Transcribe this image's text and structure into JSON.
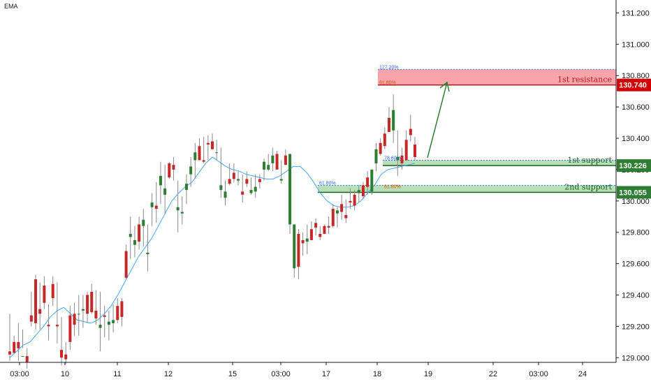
{
  "chart_data": {
    "type": "candlestick",
    "indicator": "EMA",
    "y_range": [
      128.97,
      131.26
    ],
    "y_ticks": [
      "131.200",
      "131.000",
      "130.800",
      "130.600",
      "130.400",
      "130.200",
      "130.000",
      "129.800",
      "129.600",
      "129.400",
      "129.200",
      "129.000"
    ],
    "x_ticks": [
      "03:00",
      "10",
      "11",
      "12",
      "15",
      "03:00",
      "17",
      "18",
      "19",
      "22",
      "03:00",
      "24"
    ],
    "zones": [
      {
        "label": "1st resistance",
        "top": 130.84,
        "bottom": 130.74,
        "color": "#f23645",
        "badge": "130.740",
        "fib_top": "127.20%",
        "fib_bottom": "61.80%"
      },
      {
        "label": "1st support",
        "top": 130.26,
        "bottom": 130.226,
        "color": "#2e7d32",
        "badge": "130.226",
        "fib_top": "78.60%"
      },
      {
        "label": "2nd support",
        "top": 130.1,
        "bottom": 130.055,
        "color": "#2e7d32",
        "badge": "130.055",
        "fib_top": "61.80%",
        "fib_top2": "61.80%"
      }
    ],
    "candles": [
      [
        129.04,
        129.28,
        129.02,
        128.98
      ],
      [
        129.1,
        129.14,
        129.03,
        129.05
      ],
      [
        129.1,
        129.22,
        129.06,
        128.98
      ],
      [
        129.01,
        129.18,
        129.01,
        129.06
      ],
      [
        129.01,
        129.06,
        128.97,
        128.93
      ],
      [
        129.27,
        129.42,
        129.23,
        129.2
      ],
      [
        129.5,
        129.53,
        129.22,
        129.18
      ],
      [
        129.31,
        129.48,
        129.28,
        129.18
      ],
      [
        129.46,
        129.52,
        129.35,
        129.31
      ],
      [
        129.21,
        129.34,
        129.2,
        129.11
      ],
      [
        129.47,
        129.52,
        129.38,
        129.33
      ],
      [
        129.21,
        129.48,
        129.2,
        129.09
      ],
      [
        129.05,
        129.26,
        129.0,
        128.95
      ],
      [
        129.02,
        129.1,
        128.99,
        128.96
      ],
      [
        129.27,
        129.33,
        129.1,
        129.05
      ],
      [
        129.28,
        129.35,
        129.21,
        129.14
      ],
      [
        129.28,
        129.4,
        129.28,
        129.14
      ],
      [
        129.3,
        129.4,
        129.31,
        129.19
      ],
      [
        129.4,
        129.42,
        129.28,
        129.22
      ],
      [
        129.42,
        129.47,
        129.29,
        129.28
      ],
      [
        129.3,
        129.43,
        129.25,
        129.21
      ],
      [
        129.19,
        129.42,
        129.21,
        129.04
      ],
      [
        129.27,
        129.33,
        129.26,
        129.13
      ],
      [
        129.21,
        129.3,
        129.23,
        129.11
      ],
      [
        129.22,
        129.34,
        129.24,
        129.16
      ],
      [
        129.33,
        129.38,
        129.24,
        129.22
      ],
      [
        129.36,
        129.38,
        129.26,
        129.2
      ],
      [
        129.68,
        129.72,
        129.51,
        129.5
      ],
      [
        129.77,
        129.9,
        129.79,
        129.63
      ],
      [
        129.72,
        129.84,
        129.75,
        129.64
      ],
      [
        129.85,
        129.9,
        129.74,
        129.69
      ],
      [
        129.84,
        129.95,
        129.88,
        129.71
      ],
      [
        129.66,
        129.85,
        129.67,
        129.55
      ],
      [
        129.96,
        130.05,
        129.99,
        129.84
      ],
      [
        129.97,
        130.12,
        129.95,
        129.86
      ],
      [
        130.1,
        130.25,
        130.16,
        129.98
      ],
      [
        130.04,
        130.23,
        130.08,
        129.92
      ],
      [
        130.24,
        130.25,
        130.15,
        130.14
      ],
      [
        130.23,
        130.28,
        130.2,
        130.13
      ],
      [
        129.94,
        130.13,
        129.96,
        129.8
      ],
      [
        129.92,
        130.03,
        129.93,
        129.85
      ],
      [
        130.07,
        130.17,
        130.11,
        129.98
      ],
      [
        130.17,
        130.28,
        130.22,
        130.09
      ],
      [
        130.26,
        130.37,
        130.31,
        130.14
      ],
      [
        130.35,
        130.4,
        130.26,
        130.26
      ],
      [
        130.26,
        130.41,
        130.25,
        130.24
      ],
      [
        130.37,
        130.42,
        130.36,
        130.26
      ],
      [
        130.38,
        130.43,
        130.33,
        130.33
      ],
      [
        130.31,
        130.39,
        130.31,
        130.26
      ],
      [
        130.07,
        130.34,
        130.1,
        130.02
      ],
      [
        130.02,
        130.13,
        130.06,
        129.97
      ],
      [
        130.14,
        130.24,
        130.11,
        130.1
      ],
      [
        130.18,
        130.24,
        130.14,
        130.12
      ],
      [
        130.13,
        130.19,
        130.14,
        130.1
      ],
      [
        130.06,
        130.17,
        130.04,
        129.99
      ],
      [
        130.14,
        130.19,
        130.11,
        130.09
      ],
      [
        130.05,
        130.15,
        130.07,
        130.04
      ],
      [
        130.06,
        130.17,
        130.09,
        130.02
      ],
      [
        130.14,
        130.17,
        130.12,
        130.08
      ],
      [
        130.2,
        130.27,
        130.25,
        130.13
      ],
      [
        130.2,
        130.3,
        130.23,
        130.19
      ],
      [
        130.24,
        130.34,
        130.29,
        130.19
      ],
      [
        130.3,
        130.32,
        130.2,
        130.25
      ],
      [
        130.13,
        130.26,
        130.14,
        130.11
      ],
      [
        130.29,
        130.33,
        130.23,
        130.23
      ],
      [
        129.85,
        130.24,
        130.3,
        129.79
      ],
      [
        129.57,
        129.76,
        129.85,
        129.51
      ],
      [
        129.79,
        129.82,
        129.58,
        129.5
      ],
      [
        129.75,
        129.8,
        129.73,
        129.65
      ],
      [
        129.74,
        129.85,
        129.76,
        129.66
      ],
      [
        129.82,
        129.87,
        129.75,
        129.76
      ],
      [
        129.86,
        129.89,
        129.83,
        129.78
      ],
      [
        129.79,
        129.84,
        129.77,
        129.75
      ],
      [
        129.84,
        129.85,
        129.79,
        129.8
      ],
      [
        129.84,
        129.9,
        129.83,
        129.79
      ],
      [
        129.95,
        129.98,
        129.84,
        129.83
      ],
      [
        129.92,
        129.96,
        129.94,
        129.83
      ],
      [
        129.98,
        130.04,
        129.93,
        129.88
      ],
      [
        129.91,
        130.01,
        129.89,
        129.86
      ],
      [
        130.0,
        130.08,
        129.99,
        129.95
      ],
      [
        130.04,
        130.07,
        129.97,
        129.94
      ],
      [
        130.05,
        130.1,
        130.07,
        129.99
      ],
      [
        130.1,
        130.12,
        130.03,
        130.01
      ],
      [
        130.15,
        130.19,
        130.09,
        130.04
      ],
      [
        130.06,
        130.08,
        130.2,
        130.04
      ],
      [
        130.24,
        130.37,
        130.33,
        130.19
      ],
      [
        130.37,
        130.4,
        130.3,
        130.29
      ],
      [
        130.43,
        130.47,
        130.35,
        130.33
      ],
      [
        130.53,
        130.6,
        130.44,
        130.45
      ],
      [
        130.45,
        130.68,
        130.58,
        130.37
      ],
      [
        130.26,
        130.45,
        130.28,
        130.16
      ],
      [
        130.29,
        130.34,
        130.24,
        130.2
      ],
      [
        130.39,
        130.45,
        130.26,
        130.29
      ],
      [
        130.46,
        130.55,
        130.42,
        130.38
      ],
      [
        130.36,
        130.41,
        130.28,
        130.26
      ]
    ],
    "ema": [
      129.0,
      129.04,
      129.08,
      129.1,
      129.15,
      129.2,
      129.26,
      129.3,
      129.32,
      129.28,
      129.24,
      129.23,
      129.22,
      129.24,
      129.28,
      129.33,
      129.4,
      129.48,
      129.56,
      129.64,
      129.7,
      129.76,
      129.84,
      129.92,
      130.0,
      130.05,
      130.09,
      130.12,
      130.18,
      130.24,
      130.28,
      130.25,
      130.22,
      130.2,
      130.19,
      130.17,
      130.16,
      130.15,
      130.14,
      130.14,
      130.16,
      130.19,
      130.22,
      130.22,
      130.18,
      130.12,
      130.05,
      130.0,
      129.97,
      129.96,
      129.96,
      129.97,
      130.0,
      130.05,
      130.1,
      130.17,
      130.2,
      130.21,
      130.22,
      130.23,
      130.24
    ],
    "legend_label": "EMA"
  }
}
